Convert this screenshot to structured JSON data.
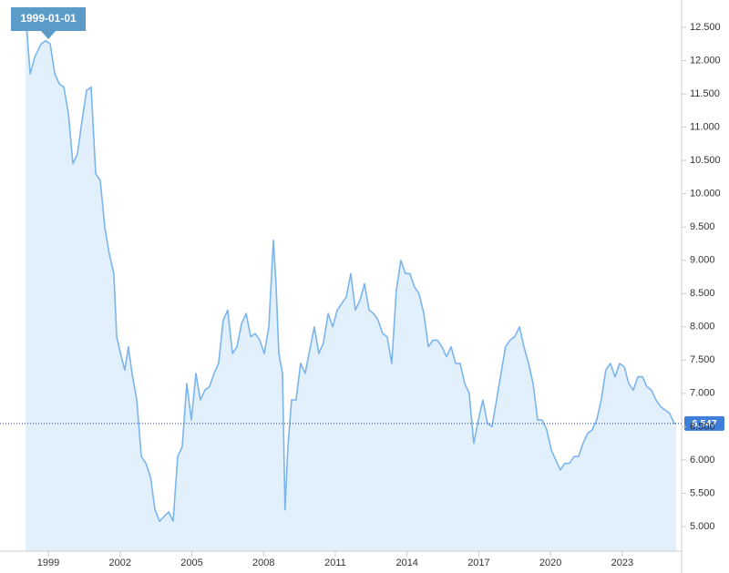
{
  "chart_data": {
    "type": "area",
    "x": [
      1998.05,
      1998.24,
      1998.43,
      1998.7,
      1998.89,
      1999.08,
      1999.27,
      1999.46,
      1999.65,
      1999.84,
      2000.03,
      2000.22,
      2000.41,
      2000.6,
      2000.79,
      2000.98,
      2001.17,
      2001.36,
      2001.55,
      2001.74,
      2001.86,
      2002.05,
      2002.2,
      2002.35,
      2002.5,
      2002.7,
      2002.89,
      2003.08,
      2003.27,
      2003.46,
      2003.65,
      2003.84,
      2004.03,
      2004.22,
      2004.41,
      2004.6,
      2004.79,
      2004.98,
      2005.17,
      2005.36,
      2005.55,
      2005.74,
      2005.93,
      2006.12,
      2006.31,
      2006.5,
      2006.7,
      2006.89,
      2007.08,
      2007.27,
      2007.46,
      2007.65,
      2007.84,
      2008.03,
      2008.22,
      2008.41,
      2008.52,
      2008.64,
      2008.79,
      2008.9,
      2009.02,
      2009.17,
      2009.36,
      2009.55,
      2009.74,
      2009.93,
      2010.12,
      2010.31,
      2010.5,
      2010.7,
      2010.89,
      2011.08,
      2011.27,
      2011.46,
      2011.65,
      2011.84,
      2012.03,
      2012.22,
      2012.41,
      2012.6,
      2012.79,
      2012.98,
      2013.17,
      2013.36,
      2013.55,
      2013.74,
      2013.93,
      2014.12,
      2014.31,
      2014.5,
      2014.7,
      2014.89,
      2015.08,
      2015.27,
      2015.46,
      2015.65,
      2015.84,
      2016.03,
      2016.22,
      2016.41,
      2016.6,
      2016.79,
      2016.98,
      2017.17,
      2017.36,
      2017.55,
      2017.74,
      2017.93,
      2018.12,
      2018.31,
      2018.5,
      2018.7,
      2018.89,
      2019.08,
      2019.27,
      2019.46,
      2019.65,
      2019.84,
      2020.03,
      2020.22,
      2020.41,
      2020.6,
      2020.79,
      2020.98,
      2021.17,
      2021.36,
      2021.55,
      2021.74,
      2021.93,
      2022.12,
      2022.31,
      2022.5,
      2022.7,
      2022.89,
      2023.08,
      2023.27,
      2023.46,
      2023.65,
      2023.84,
      2024.03,
      2024.22,
      2024.41,
      2024.6,
      2024.79,
      2024.98,
      2025.17,
      2025.25
    ],
    "values": [
      12.7,
      11.8,
      12.05,
      12.25,
      12.3,
      12.25,
      11.8,
      11.65,
      11.6,
      11.2,
      10.45,
      10.6,
      11.1,
      11.55,
      11.6,
      10.3,
      10.2,
      9.5,
      9.1,
      8.8,
      7.85,
      7.55,
      7.35,
      7.7,
      7.3,
      6.9,
      6.05,
      5.95,
      5.75,
      5.25,
      5.08,
      5.15,
      5.22,
      5.08,
      6.05,
      6.2,
      7.15,
      6.6,
      7.3,
      6.9,
      7.05,
      7.1,
      7.3,
      7.45,
      8.1,
      8.25,
      7.6,
      7.7,
      8.05,
      8.2,
      7.85,
      7.9,
      7.8,
      7.6,
      8.0,
      9.3,
      8.65,
      7.6,
      7.3,
      5.25,
      6.2,
      6.9,
      6.9,
      7.45,
      7.3,
      7.65,
      8.0,
      7.6,
      7.75,
      8.2,
      8.0,
      8.25,
      8.35,
      8.45,
      8.8,
      8.25,
      8.4,
      8.65,
      8.25,
      8.2,
      8.1,
      7.9,
      7.85,
      7.45,
      8.55,
      9.0,
      8.8,
      8.8,
      8.6,
      8.5,
      8.2,
      7.7,
      7.8,
      7.8,
      7.7,
      7.55,
      7.7,
      7.45,
      7.45,
      7.15,
      7.0,
      6.25,
      6.6,
      6.9,
      6.55,
      6.5,
      6.9,
      7.3,
      7.7,
      7.8,
      7.85,
      8.0,
      7.7,
      7.45,
      7.15,
      6.6,
      6.6,
      6.45,
      6.15,
      6.0,
      5.85,
      5.95,
      5.95,
      6.05,
      6.05,
      6.25,
      6.4,
      6.45,
      6.6,
      6.9,
      7.35,
      7.45,
      7.25,
      7.45,
      7.4,
      7.15,
      7.05,
      7.25,
      7.25,
      7.1,
      7.05,
      6.9,
      6.8,
      6.75,
      6.7,
      6.55,
      6.547
    ],
    "line_color": "#7cb5ec",
    "fill_color": "#e1f0fa",
    "xlim": [
      1996.98,
      2025.48
    ],
    "xticks": [
      1999,
      2002,
      2005,
      2008,
      2011,
      2014,
      2017,
      2020,
      2023
    ],
    "ylim": [
      4.63,
      12.91
    ],
    "yticks": [
      {
        "value": 5,
        "label": "5.000"
      },
      {
        "value": 5.5,
        "label": "5.500"
      },
      {
        "value": 6,
        "label": "6.000"
      },
      {
        "value": 6.5,
        "label": "6.500"
      },
      {
        "value": 7,
        "label": "7.000"
      },
      {
        "value": 7.5,
        "label": "7.500"
      },
      {
        "value": 8,
        "label": "8.000"
      },
      {
        "value": 8.5,
        "label": "8.500"
      },
      {
        "value": 9,
        "label": "9.000"
      },
      {
        "value": 9.5,
        "label": "9.500"
      },
      {
        "value": 10,
        "label": "10.000"
      },
      {
        "value": 10.5,
        "label": "10.500"
      },
      {
        "value": 11,
        "label": "11.000"
      },
      {
        "value": 11.5,
        "label": "11.500"
      },
      {
        "value": 12,
        "label": "12.000"
      },
      {
        "value": 12.5,
        "label": "12.500"
      }
    ],
    "last_value": 6.547,
    "crosshair_label": "1999-01-01",
    "crosshair_x": 1999
  }
}
